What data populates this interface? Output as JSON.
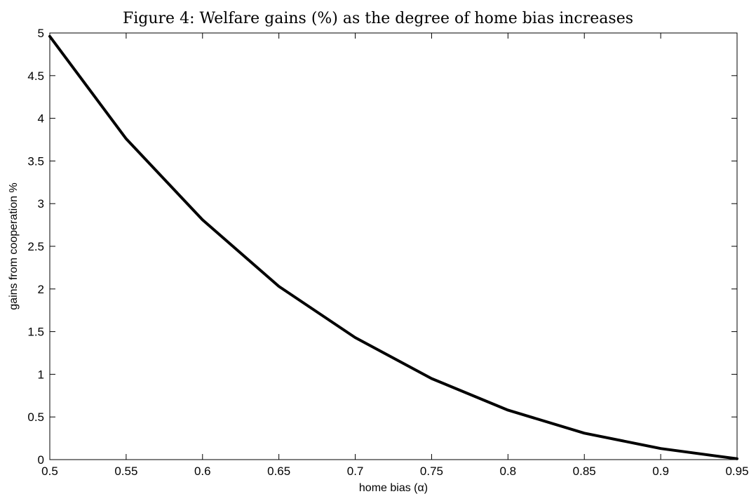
{
  "figure": {
    "title": "Figure 4: Welfare gains (%) as the degree of home bias increases"
  },
  "chart_data": {
    "type": "line",
    "title": "Figure 4: Welfare gains (%) as the degree of home bias increases",
    "xlabel": "home bias (α)",
    "ylabel": "gains from cooperation %",
    "xlim": [
      0.5,
      0.95
    ],
    "ylim": [
      0,
      5
    ],
    "xticks": [
      0.5,
      0.55,
      0.6,
      0.65,
      0.7,
      0.75,
      0.8,
      0.85,
      0.9,
      0.95
    ],
    "xtick_labels": [
      "0.5",
      "0.55",
      "0.6",
      "0.65",
      "0.7",
      "0.75",
      "0.8",
      "0.85",
      "0.9",
      "0.95"
    ],
    "yticks": [
      0,
      0.5,
      1,
      1.5,
      2,
      2.5,
      3,
      3.5,
      4,
      4.5,
      5
    ],
    "ytick_labels": [
      "0",
      "0.5",
      "1",
      "1.5",
      "2",
      "2.5",
      "3",
      "3.5",
      "4",
      "4.5",
      "5"
    ],
    "grid": false,
    "series": [
      {
        "color": "#000000",
        "x": [
          0.5,
          0.55,
          0.6,
          0.65,
          0.7,
          0.75,
          0.8,
          0.85,
          0.9,
          0.95
        ],
        "y": [
          4.96,
          3.76,
          2.81,
          2.03,
          1.43,
          0.95,
          0.58,
          0.31,
          0.13,
          0.01
        ]
      }
    ]
  }
}
